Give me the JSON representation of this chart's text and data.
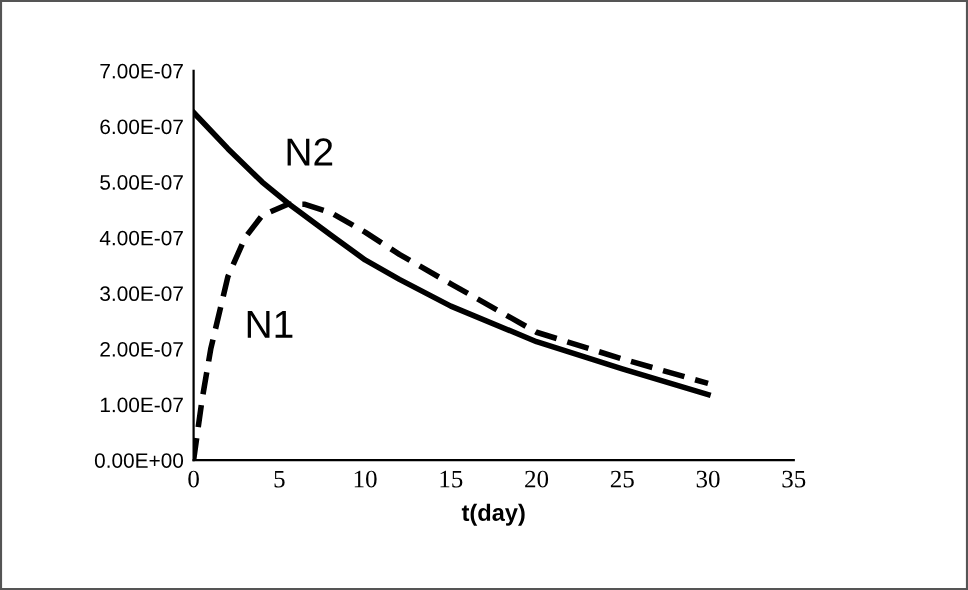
{
  "chart_data": {
    "type": "line",
    "xlabel": "t(day)",
    "xlim": [
      0,
      35
    ],
    "xticks": [
      0,
      5,
      10,
      15,
      20,
      25,
      30,
      35
    ],
    "ylim": [
      0,
      7e-07
    ],
    "yticks": [
      {
        "value": 0,
        "label": "0.00E+00"
      },
      {
        "value": 1e-07,
        "label": "1.00E-07"
      },
      {
        "value": 2e-07,
        "label": "2.00E-07"
      },
      {
        "value": 3e-07,
        "label": "3.00E-07"
      },
      {
        "value": 4e-07,
        "label": "4.00E-07"
      },
      {
        "value": 5e-07,
        "label": "5.00E-07"
      },
      {
        "value": 6e-07,
        "label": "6.00E-07"
      },
      {
        "value": 7e-07,
        "label": "7.00E-07"
      }
    ],
    "grid": false,
    "legend": false,
    "series": [
      {
        "name": "N2",
        "color": "#000000",
        "line_style": "solid",
        "x": [
          0,
          2,
          4,
          5.5,
          8,
          10,
          12,
          15,
          20,
          25,
          30
        ],
        "values": [
          6.25e-07,
          5.6e-07,
          5e-07,
          4.62e-07,
          4.05e-07,
          3.6e-07,
          3.25e-07,
          2.77e-07,
          2.13e-07,
          1.64e-07,
          1.18e-07
        ]
      },
      {
        "name": "N1",
        "color": "#000000",
        "line_style": "dashed",
        "x": [
          0,
          0.5,
          1,
          2,
          3,
          4,
          5.5,
          6.5,
          8,
          10,
          12,
          15,
          20,
          25,
          30
        ],
        "values": [
          0,
          1.1e-07,
          2e-07,
          3.3e-07,
          4e-07,
          4.4e-07,
          4.6e-07,
          4.6e-07,
          4.45e-07,
          4.1e-07,
          3.7e-07,
          3.17e-07,
          2.3e-07,
          1.82e-07,
          1.38e-07
        ]
      }
    ]
  }
}
